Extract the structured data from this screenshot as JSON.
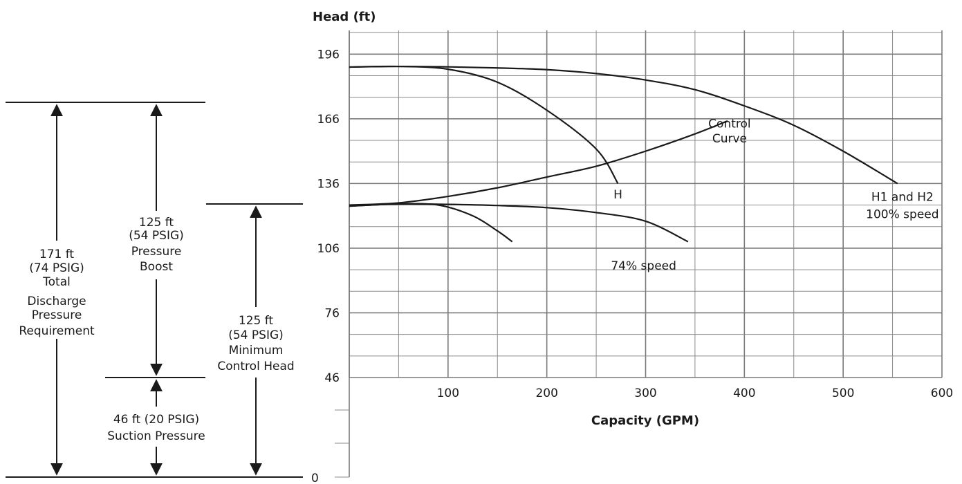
{
  "chart_data": {
    "type": "line",
    "ylabel": "Head (ft)",
    "xlabel": "Capacity (GPM)",
    "xlim": [
      0,
      600
    ],
    "ylim": [
      46,
      207
    ],
    "x_ticks": [
      100,
      200,
      300,
      400,
      500,
      600
    ],
    "y_ticks": [
      196,
      166,
      136,
      106,
      76,
      46
    ],
    "grid": true,
    "series": [
      {
        "id": "h100",
        "name": "H1 and H2\n100% speed",
        "points": [
          [
            0,
            190
          ],
          [
            50,
            190.3
          ],
          [
            100,
            190.1
          ],
          [
            150,
            189.6
          ],
          [
            200,
            188.8
          ],
          [
            250,
            187
          ],
          [
            300,
            184
          ],
          [
            350,
            179.5
          ],
          [
            400,
            172
          ],
          [
            450,
            163
          ],
          [
            500,
            151
          ],
          [
            555,
            136
          ]
        ]
      },
      {
        "id": "h",
        "name": "H",
        "points": [
          [
            0,
            190
          ],
          [
            50,
            190.3
          ],
          [
            100,
            189
          ],
          [
            150,
            183
          ],
          [
            200,
            170
          ],
          [
            250,
            152
          ],
          [
            272,
            136
          ]
        ]
      },
      {
        "id": "control",
        "name": "Control\nCurve",
        "points": [
          [
            0,
            126
          ],
          [
            50,
            127
          ],
          [
            100,
            130
          ],
          [
            150,
            134
          ],
          [
            200,
            139
          ],
          [
            250,
            144
          ],
          [
            300,
            151
          ],
          [
            350,
            159
          ],
          [
            383,
            165
          ]
        ]
      },
      {
        "id": "s74",
        "name": "74% speed",
        "points": [
          [
            0,
            125.5
          ],
          [
            50,
            126.5
          ],
          [
            100,
            126.3
          ],
          [
            150,
            125.8
          ],
          [
            200,
            124.8
          ],
          [
            250,
            122.5
          ],
          [
            300,
            118.5
          ],
          [
            343,
            109
          ]
        ]
      },
      {
        "id": "s74b",
        "name": "",
        "points": [
          [
            0,
            125.5
          ],
          [
            50,
            126.5
          ],
          [
            90,
            126
          ],
          [
            125,
            121
          ],
          [
            150,
            114
          ],
          [
            165,
            109
          ]
        ]
      }
    ],
    "curve_labels": [
      {
        "text": "H",
        "x": 272,
        "y": 129
      },
      {
        "text": "Control",
        "x": 385,
        "y": 162
      },
      {
        "text": "Curve",
        "x": 385,
        "y": 155
      },
      {
        "text": "H1 and H2",
        "x": 560,
        "y": 128
      },
      {
        "text": "100% speed",
        "x": 560,
        "y": 120
      },
      {
        "text": "74% speed",
        "x": 298,
        "y": 96
      }
    ],
    "lower_axis_label": "0"
  },
  "diagram": {
    "total": {
      "lines": [
        "171 ft",
        "(74 PSIG)",
        "Total",
        "Discharge",
        "Pressure",
        "Requirement"
      ]
    },
    "boost": {
      "lines": [
        "125 ft",
        "(54 PSIG)",
        "Pressure",
        "Boost"
      ]
    },
    "suction": {
      "lines": [
        "46 ft (20 PSIG)",
        "Suction Pressure"
      ]
    },
    "min_control": {
      "lines": [
        "125 ft",
        "(54 PSIG)",
        "Minimum",
        "Control Head"
      ]
    }
  }
}
